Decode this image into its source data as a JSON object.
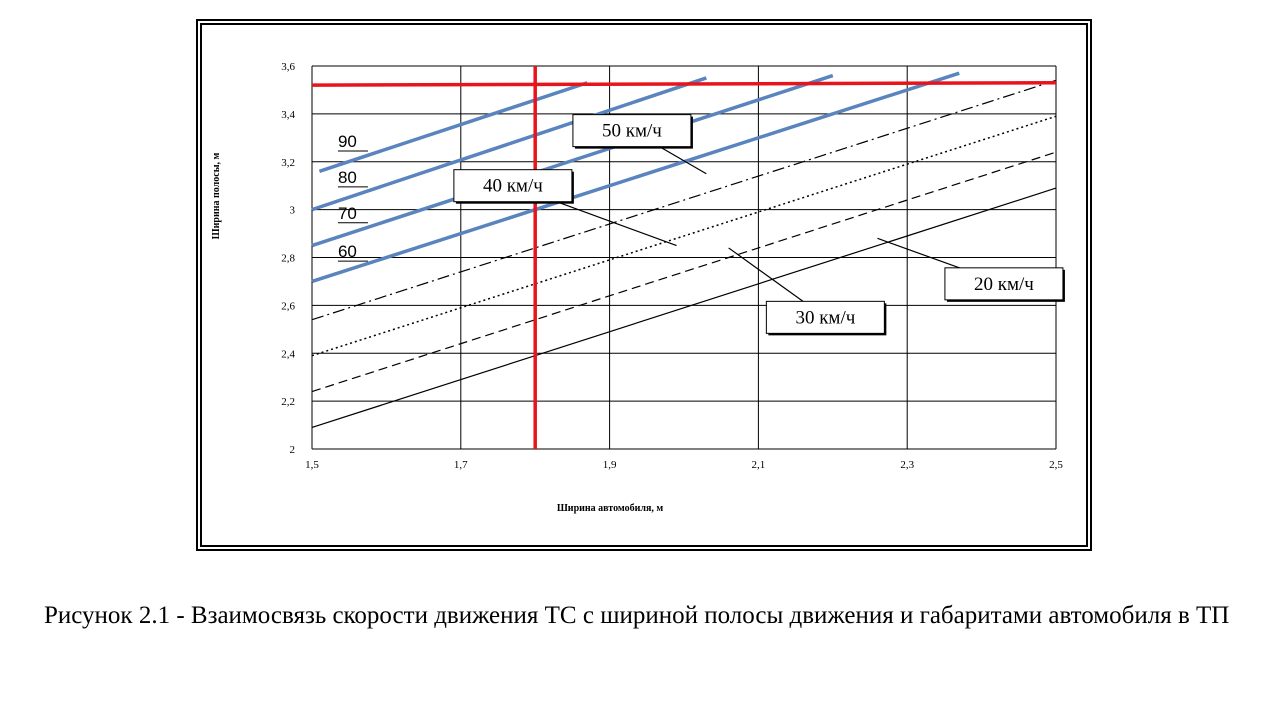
{
  "caption": "Рисунок 2.1 - Взаимосвязь скорости движения ТС с шириной полосы движения и габаритами автомобиля в ТП",
  "colors": {
    "grid": "#000000",
    "highlight": "#e8141b",
    "blue": "#5a84bd",
    "background": "#ffffff"
  },
  "chart_data": {
    "type": "line",
    "xlabel": "Ширина автомобиля, м",
    "ylabel": "Ширина полосы, м",
    "xlim": [
      1.5,
      2.5
    ],
    "ylim": [
      2.0,
      3.6
    ],
    "grid": true,
    "x_ticks": [
      1.5,
      1.7,
      1.9,
      2.1,
      2.3,
      2.5
    ],
    "x_tick_labels": [
      "1,5",
      "1,7",
      "1,9",
      "2,1",
      "2,3",
      "2,5"
    ],
    "y_ticks": [
      2.0,
      2.2,
      2.4,
      2.6,
      2.8,
      3.0,
      3.2,
      3.4,
      3.6
    ],
    "y_tick_labels": [
      "2",
      "2,2",
      "2,4",
      "2,6",
      "2,8",
      "3",
      "3,2",
      "3,4",
      "3,6"
    ],
    "series": [
      {
        "name": "20 км/ч",
        "style": "solid",
        "x": [
          1.5,
          2.5
        ],
        "y": [
          2.09,
          3.09
        ]
      },
      {
        "name": "30 км/ч",
        "style": "dashed",
        "x": [
          1.5,
          2.5
        ],
        "y": [
          2.24,
          3.24
        ]
      },
      {
        "name": "40 км/ч",
        "style": "dotted",
        "x": [
          1.5,
          2.5
        ],
        "y": [
          2.39,
          3.39
        ]
      },
      {
        "name": "50 км/ч",
        "style": "dashdot",
        "x": [
          1.5,
          2.5
        ],
        "y": [
          2.54,
          3.54
        ]
      },
      {
        "name": "60",
        "style": "blue",
        "x": [
          1.5,
          2.37
        ],
        "y": [
          2.7,
          3.57
        ]
      },
      {
        "name": "70",
        "style": "blue",
        "x": [
          1.5,
          2.2
        ],
        "y": [
          2.85,
          3.56
        ]
      },
      {
        "name": "80",
        "style": "blue",
        "x": [
          1.5,
          2.03
        ],
        "y": [
          3.0,
          3.55
        ]
      },
      {
        "name": "90",
        "style": "blue",
        "x": [
          1.51,
          1.87
        ],
        "y": [
          3.16,
          3.53
        ]
      },
      {
        "name": "",
        "style": "red",
        "x": [
          1.5,
          2.5
        ],
        "y": [
          3.52,
          3.53
        ]
      },
      {
        "name": "",
        "style": "red",
        "x": [
          1.8,
          1.8
        ],
        "y": [
          2.0,
          3.6
        ]
      }
    ],
    "callouts": [
      {
        "text": "20 км/ч",
        "target": [
          2.26,
          2.88
        ],
        "box_center": [
          2.43,
          2.69
        ]
      },
      {
        "text": "30 км/ч",
        "target": [
          2.06,
          2.84
        ],
        "box_center": [
          2.19,
          2.55
        ]
      },
      {
        "text": "40 км/ч",
        "target": [
          1.99,
          2.85
        ],
        "box_center": [
          1.77,
          3.1
        ]
      },
      {
        "text": "50 км/ч",
        "target": [
          2.03,
          3.15
        ],
        "box_center": [
          1.93,
          3.33
        ]
      }
    ],
    "blue_labels": [
      {
        "text": "90",
        "at": [
          1.551,
          3.27
        ]
      },
      {
        "text": "80",
        "at": [
          1.551,
          3.12
        ]
      },
      {
        "text": "70",
        "at": [
          1.551,
          2.97
        ]
      },
      {
        "text": "60",
        "at": [
          1.551,
          2.81
        ]
      }
    ]
  }
}
